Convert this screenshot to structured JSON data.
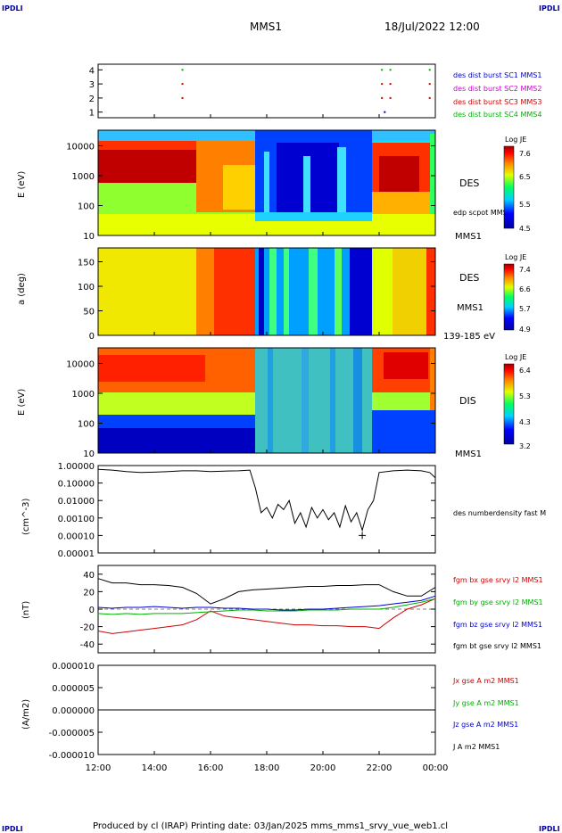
{
  "corners": {
    "tl": "IPDLI",
    "tr": "IPDLI",
    "bl": "IPDLI",
    "br": "IPDLI"
  },
  "header": {
    "spacecraft": "MMS1",
    "datetime": "18/Jul/2022 12:00"
  },
  "footer": {
    "text": "Produced by cl (IRAP)   Printing date: 03/Jan/2025   mms_mms1_srvy_vue_web1.cl"
  },
  "colors": {
    "red": "#d00000",
    "green": "#00b000",
    "blue": "#0000d0",
    "magenta": "#d000d0",
    "black": "#000000"
  },
  "chart_data": [
    {
      "type": "scatter",
      "name": "burst-flags",
      "yticks": [
        "1",
        "2",
        "3",
        "4"
      ],
      "ylim": [
        0.6,
        4.4
      ],
      "legend": [
        {
          "text": "des dist burst SC1 MMS1",
          "color": "#0000d0"
        },
        {
          "text": "des dist burst SC2 MMS2",
          "color": "#d000d0"
        },
        {
          "text": "des dist burst SC3 MMS3",
          "color": "#d00000"
        },
        {
          "text": "des dist burst SC4 MMS4",
          "color": "#00b000"
        }
      ],
      "points": [
        {
          "t": 15.0,
          "y": 4,
          "color": "#00b000"
        },
        {
          "t": 15.0,
          "y": 3,
          "color": "#d00000"
        },
        {
          "t": 15.0,
          "y": 2,
          "color": "#d00000"
        },
        {
          "t": 22.1,
          "y": 4,
          "color": "#00b000"
        },
        {
          "t": 22.4,
          "y": 4,
          "color": "#00b000"
        },
        {
          "t": 22.1,
          "y": 3,
          "color": "#d00000"
        },
        {
          "t": 22.4,
          "y": 3,
          "color": "#d00000"
        },
        {
          "t": 22.1,
          "y": 2,
          "color": "#d00000"
        },
        {
          "t": 22.4,
          "y": 2,
          "color": "#d00000"
        },
        {
          "t": 22.2,
          "y": 1,
          "color": "#0000d0"
        },
        {
          "t": 23.8,
          "y": 4,
          "color": "#00b000"
        },
        {
          "t": 23.8,
          "y": 3,
          "color": "#d00000"
        },
        {
          "t": 23.8,
          "y": 2,
          "color": "#d00000"
        }
      ]
    },
    {
      "type": "heatmap",
      "name": "des-energy",
      "ylabel": "E (eV)",
      "yticks": [
        "10",
        "100",
        "1000",
        "10000"
      ],
      "label": "DES",
      "extra": "edp scpot MMS1",
      "sc": "MMS1",
      "colorbar": {
        "title": "Log JE",
        "ticks": [
          "7.6",
          "6.5",
          "5.5",
          "4.5"
        ]
      }
    },
    {
      "type": "heatmap",
      "name": "des-pitch",
      "ylabel": "a (deg)",
      "yticks": [
        "0",
        "50",
        "100",
        "150"
      ],
      "label": "DES",
      "sc": "MMS1",
      "energy_range": "139-185 eV",
      "colorbar": {
        "title": "Log JE",
        "ticks": [
          "7.4",
          "6.6",
          "5.7",
          "4.9"
        ]
      }
    },
    {
      "type": "heatmap",
      "name": "dis-energy",
      "ylabel": "E (eV)",
      "yticks": [
        "10",
        "100",
        "1000",
        "10000"
      ],
      "label": "DIS",
      "sc": "MMS1",
      "colorbar": {
        "title": "Log JE",
        "ticks": [
          "6.4",
          "5.3",
          "4.3",
          "3.2"
        ]
      }
    },
    {
      "type": "line",
      "name": "density",
      "ylabel": "(cm^-3)",
      "yscale": "log",
      "yticks": [
        "1.00000",
        "0.10000",
        "0.01000",
        "0.00100",
        "0.00010",
        "0.00001"
      ],
      "legend": [
        {
          "text": "des numberdensity fast M",
          "color": "#000000"
        }
      ],
      "series": [
        {
          "name": "des numberdensity fast M",
          "color": "#000000",
          "t": [
            12.0,
            12.5,
            13.0,
            13.5,
            14.0,
            14.5,
            15.0,
            15.5,
            16.0,
            16.5,
            17.0,
            17.4,
            17.6,
            17.8,
            18.0,
            18.2,
            18.4,
            18.6,
            18.8,
            19.0,
            19.2,
            19.4,
            19.6,
            19.8,
            20.0,
            20.2,
            20.4,
            20.6,
            20.8,
            21.0,
            21.2,
            21.4,
            21.6,
            21.8,
            22.0,
            22.5,
            23.0,
            23.5,
            23.8,
            24.0
          ],
          "values": [
            0.6,
            0.55,
            0.45,
            0.4,
            0.42,
            0.45,
            0.5,
            0.5,
            0.45,
            0.48,
            0.5,
            0.55,
            0.05,
            0.002,
            0.004,
            0.001,
            0.006,
            0.003,
            0.01,
            0.0005,
            0.002,
            0.0003,
            0.004,
            0.001,
            0.003,
            0.0008,
            0.002,
            0.0003,
            0.005,
            0.0006,
            0.002,
            0.0002,
            0.003,
            0.01,
            0.4,
            0.5,
            0.55,
            0.5,
            0.4,
            0.2
          ]
        }
      ],
      "marker": {
        "t": 21.4,
        "value": 0.0001
      }
    },
    {
      "type": "line",
      "name": "magnetic-field",
      "ylabel": "(nT)",
      "yticks": [
        "40",
        "20",
        "0",
        "-20",
        "-40"
      ],
      "ylim": [
        -50,
        50
      ],
      "legend": [
        {
          "text": "fgm bx gse srvy l2 MMS1",
          "color": "#d00000"
        },
        {
          "text": "fgm by gse srvy l2 MMS1",
          "color": "#00b000"
        },
        {
          "text": "fgm bz gse srvy l2 MMS1",
          "color": "#0000d0"
        },
        {
          "text": "fgm bt gse srvy l2 MMS1",
          "color": "#000000"
        }
      ],
      "x": [
        12.0,
        12.5,
        13.0,
        13.5,
        14.0,
        14.5,
        15.0,
        15.5,
        16.0,
        16.5,
        17.0,
        17.5,
        18.0,
        18.5,
        19.0,
        19.5,
        20.0,
        20.5,
        21.0,
        21.5,
        22.0,
        22.5,
        23.0,
        23.5,
        24.0
      ],
      "series": [
        {
          "name": "fgm bx gse srvy l2 MMS1",
          "color": "#d00000",
          "values": [
            -25,
            -28,
            -26,
            -24,
            -22,
            -20,
            -18,
            -12,
            -2,
            -8,
            -10,
            -12,
            -14,
            -16,
            -18,
            -18,
            -19,
            -19,
            -20,
            -20,
            -22,
            -10,
            0,
            5,
            12
          ]
        },
        {
          "name": "fgm by gse srvy l2 MMS1",
          "color": "#00b000",
          "values": [
            -5,
            -6,
            -5,
            -6,
            -5,
            -5,
            -5,
            -4,
            -3,
            -2,
            -1,
            -1,
            -2,
            -2,
            -2,
            -1,
            -1,
            -1,
            0,
            0,
            0,
            2,
            5,
            8,
            12
          ]
        },
        {
          "name": "fgm bz gse srvy l2 MMS1",
          "color": "#0000d0",
          "values": [
            2,
            1,
            2,
            2,
            3,
            2,
            1,
            2,
            2,
            1,
            1,
            0,
            0,
            -1,
            -1,
            0,
            0,
            1,
            2,
            3,
            4,
            6,
            8,
            10,
            15
          ]
        },
        {
          "name": "fgm bt gse srvy l2 MMS1",
          "color": "#000000",
          "values": [
            35,
            30,
            30,
            28,
            28,
            27,
            25,
            18,
            6,
            12,
            20,
            22,
            23,
            24,
            25,
            26,
            26,
            27,
            27,
            28,
            28,
            20,
            15,
            15,
            25
          ]
        }
      ]
    },
    {
      "type": "line",
      "name": "current-density",
      "ylabel": "(A/m2)",
      "yticks": [
        "0.000010",
        "0.000005",
        "0.000000",
        "-0.000005",
        "-0.000010"
      ],
      "ylim": [
        -1e-05,
        1e-05
      ],
      "legend": [
        {
          "text": "Jx gse A m2 MMS1",
          "color": "#d00000"
        },
        {
          "text": "Jy gse A m2 MMS1",
          "color": "#00b000"
        },
        {
          "text": "Jz gse A m2 MMS1",
          "color": "#0000d0"
        },
        {
          "text": "J A m2 MMS1",
          "color": "#000000"
        }
      ],
      "x": [
        12.0,
        24.0
      ],
      "series": [
        {
          "name": "J A m2 MMS1",
          "color": "#000000",
          "values": [
            0,
            0
          ]
        }
      ]
    }
  ],
  "xaxis": {
    "ticks": [
      "12:00",
      "14:00",
      "16:00",
      "18:00",
      "20:00",
      "22:00",
      "00:00"
    ],
    "range": [
      12,
      24
    ]
  }
}
